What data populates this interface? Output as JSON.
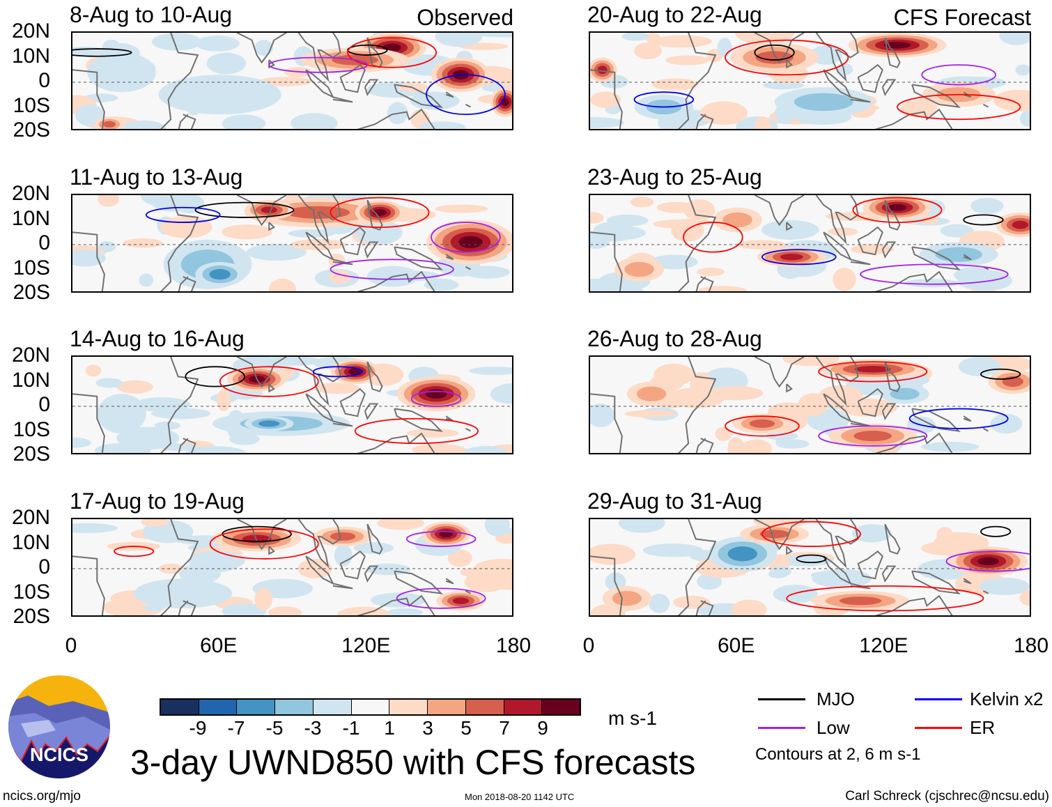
{
  "header_labels": {
    "observed": "Observed",
    "forecast": "CFS Forecast"
  },
  "panels": [
    {
      "title": "8-Aug to 10-Aug",
      "group": "observed"
    },
    {
      "title": "11-Aug to 13-Aug",
      "group": "observed"
    },
    {
      "title": "14-Aug to 16-Aug",
      "group": "observed"
    },
    {
      "title": "17-Aug to 19-Aug",
      "group": "observed"
    },
    {
      "title": "20-Aug to 22-Aug",
      "group": "forecast"
    },
    {
      "title": "23-Aug to 25-Aug",
      "group": "forecast"
    },
    {
      "title": "26-Aug to 28-Aug",
      "group": "forecast"
    },
    {
      "title": "29-Aug to 31-Aug",
      "group": "forecast"
    }
  ],
  "lat_ticks": [
    "20N",
    "10N",
    "0",
    "10S",
    "20S"
  ],
  "lon_ticks": [
    "0",
    "60E",
    "120E",
    "180"
  ],
  "colorbar": {
    "colors": [
      "#18305f",
      "#2166ac",
      "#4393c3",
      "#92c5de",
      "#d1e5f0",
      "#f7f7f7",
      "#fddbc7",
      "#f4a582",
      "#d6604d",
      "#b2182b",
      "#67001f"
    ],
    "labels": [
      "-9",
      "-7",
      "-5",
      "-3",
      "-1",
      "1",
      "3",
      "5",
      "7",
      "9"
    ],
    "units": "m s-1"
  },
  "legend": {
    "items": [
      {
        "label": "MJO",
        "color": "#000000"
      },
      {
        "label": "Kelvin x2",
        "color": "#0000ee"
      },
      {
        "label": "Low",
        "color": "#a020f0"
      },
      {
        "label": "ER",
        "color": "#ff0000"
      }
    ],
    "note": "Contours at 2, 6 m s-1"
  },
  "title": "3-day UWND850 with CFS forecasts",
  "logo_text": "NCICS",
  "footer": {
    "left": "ncics.org/mjo",
    "center": "Mon 2018-08-20 1142 UTC",
    "right": "Carl Schreck (cjschrec@ncsu.edu)"
  }
}
